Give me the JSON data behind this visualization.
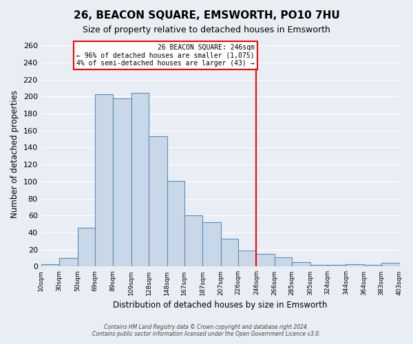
{
  "title": "26, BEACON SQUARE, EMSWORTH, PO10 7HU",
  "subtitle": "Size of property relative to detached houses in Emsworth",
  "xlabel": "Distribution of detached houses by size in Emsworth",
  "ylabel": "Number of detached properties",
  "bar_color": "#c8d8e8",
  "bar_edge_color": "#5b8db8",
  "background_color": "#e8eef4",
  "vline_x": 246,
  "vline_color": "red",
  "bin_edges": [
    10,
    30,
    50,
    69,
    89,
    109,
    128,
    148,
    167,
    187,
    207,
    226,
    246,
    266,
    285,
    305,
    324,
    344,
    364,
    383,
    403
  ],
  "bin_labels": [
    "10sqm",
    "30sqm",
    "50sqm",
    "69sqm",
    "89sqm",
    "109sqm",
    "128sqm",
    "148sqm",
    "167sqm",
    "187sqm",
    "207sqm",
    "226sqm",
    "246sqm",
    "266sqm",
    "285sqm",
    "305sqm",
    "324sqm",
    "344sqm",
    "364sqm",
    "383sqm",
    "403sqm"
  ],
  "counts": [
    3,
    10,
    46,
    203,
    198,
    204,
    153,
    101,
    60,
    52,
    33,
    19,
    15,
    11,
    5,
    2,
    2,
    3,
    2,
    4
  ],
  "box_text_line1": "26 BEACON SQUARE: 246sqm",
  "box_text_line2": "← 96% of detached houses are smaller (1,075)",
  "box_text_line3": "4% of semi-detached houses are larger (43) →",
  "footer_line1": "Contains HM Land Registry data © Crown copyright and database right 2024.",
  "footer_line2": "Contains public sector information licensed under the Open Government Licence v3.0.",
  "ylim": [
    0,
    265
  ],
  "yticks": [
    0,
    20,
    40,
    60,
    80,
    100,
    120,
    140,
    160,
    180,
    200,
    220,
    240,
    260
  ]
}
